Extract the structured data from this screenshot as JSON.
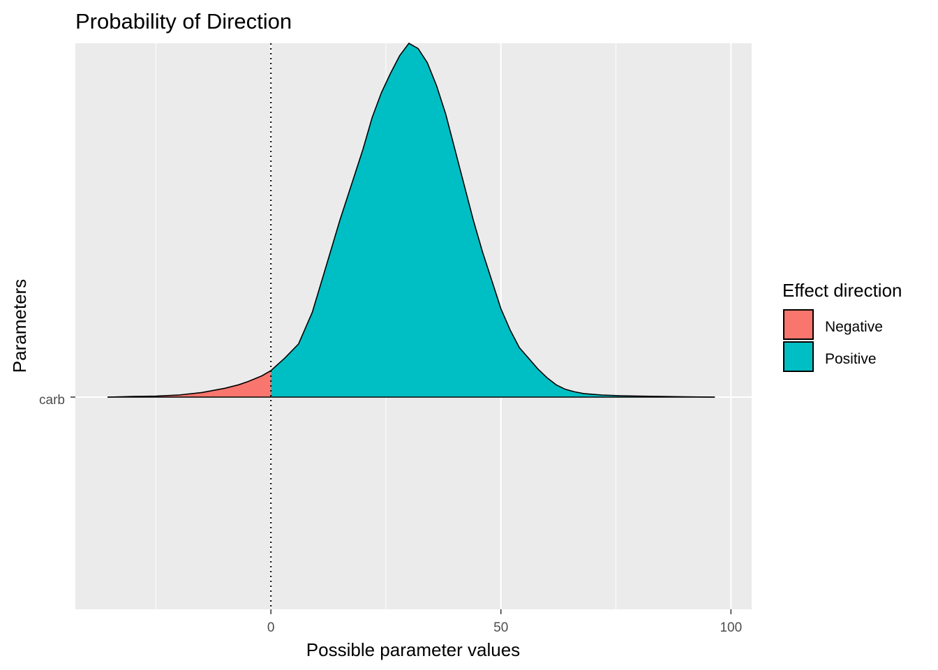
{
  "chart_data": {
    "type": "area",
    "title": "Probability of Direction",
    "xlabel": "Possible parameter values",
    "ylabel": "Parameters",
    "xlim": [
      -42.5,
      104.5
    ],
    "x_ticks": [
      0,
      50,
      100
    ],
    "x_tick_labels": [
      "0",
      "50",
      "100"
    ],
    "x_minor_ticks": [
      -25,
      25,
      75
    ],
    "y_categories": [
      "carb"
    ],
    "reference_line": {
      "x": 0,
      "style": "dotted"
    },
    "grid": true,
    "legend": {
      "title": "Effect direction",
      "position": "right",
      "entries": [
        {
          "label": "Negative",
          "color": "#F8766D"
        },
        {
          "label": "Positive",
          "color": "#00BFC4"
        }
      ]
    },
    "colors": {
      "negative": "#F8766D",
      "positive": "#00BFC4",
      "panel_background": "#EBEBEB",
      "grid": "#FFFFFF"
    },
    "density": {
      "parameter": "carb",
      "x": [
        -35.5,
        -30,
        -25,
        -20,
        -15,
        -10,
        -7,
        -5,
        -2,
        0,
        3,
        6,
        9,
        12,
        15,
        18,
        20,
        22,
        24,
        26,
        28,
        30,
        32,
        34,
        36,
        38,
        40,
        42,
        44,
        46,
        48,
        50,
        52,
        54,
        56,
        58,
        60,
        62,
        64,
        66,
        68,
        72,
        76,
        80,
        85,
        90,
        96.5
      ],
      "y": [
        0.0,
        0.002,
        0.003,
        0.006,
        0.013,
        0.025,
        0.035,
        0.044,
        0.06,
        0.075,
        0.11,
        0.15,
        0.24,
        0.37,
        0.5,
        0.62,
        0.7,
        0.79,
        0.86,
        0.915,
        0.965,
        1.0,
        0.985,
        0.945,
        0.88,
        0.8,
        0.7,
        0.6,
        0.5,
        0.41,
        0.33,
        0.25,
        0.19,
        0.14,
        0.11,
        0.08,
        0.055,
        0.035,
        0.022,
        0.015,
        0.01,
        0.006,
        0.004,
        0.003,
        0.002,
        0.001,
        0.0
      ]
    }
  }
}
